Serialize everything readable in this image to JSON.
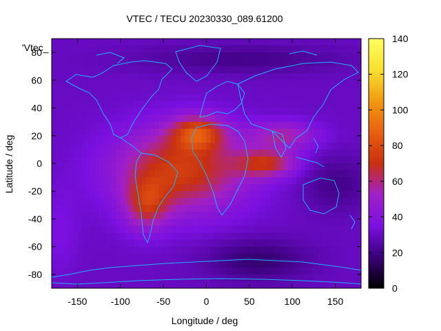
{
  "chart_data": {
    "type": "heatmap",
    "title": "VTEC / TECU 20230330_089.61200",
    "xlabel": "Longitude / deg",
    "ylabel": "Latitude / deg",
    "series_key_label": "'Vtec_",
    "xlim": [
      -180,
      180
    ],
    "ylim": [
      -90,
      90
    ],
    "x_ticks": [
      -150,
      -100,
      -50,
      0,
      50,
      100,
      150
    ],
    "y_ticks": [
      -80,
      -60,
      -40,
      -20,
      0,
      20,
      40,
      60,
      80
    ],
    "colorbar": {
      "range": [
        0,
        140
      ],
      "ticks": [
        0,
        20,
        40,
        60,
        80,
        100,
        120,
        140
      ],
      "palette": [
        "#000000",
        "#3a007a",
        "#7a10e0",
        "#a020c8",
        "#c83010",
        "#e86010",
        "#f09a10",
        "#f8e030",
        "#ffff60"
      ]
    },
    "features": [
      {
        "name": "equatorial-anomaly-crest-north",
        "lon": -10,
        "lat": 20,
        "peak_value": 125
      },
      {
        "name": "equatorial-anomaly-band",
        "lon_range": [
          -120,
          110
        ],
        "lat_range": [
          -45,
          30
        ],
        "typical_value": 70
      },
      {
        "name": "background",
        "typical_value": 30
      },
      {
        "name": "polar-low",
        "typical_value": 20
      }
    ]
  }
}
